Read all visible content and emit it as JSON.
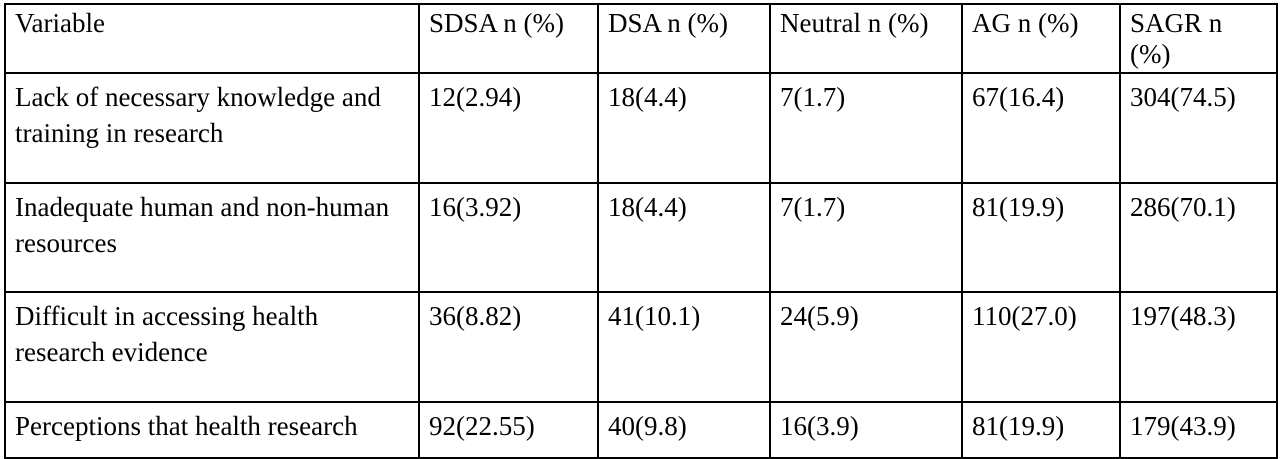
{
  "table": {
    "headers": [
      "Variable",
      "SDSA n (%)",
      "DSA n (%)",
      "Neutral n (%)",
      "AG n (%)",
      "SAGR n (%)"
    ],
    "rows": [
      [
        "Lack of necessary knowledge and training in research",
        "12(2.94)",
        "18(4.4)",
        "7(1.7)",
        "67(16.4)",
        "304(74.5)"
      ],
      [
        "Inadequate human and non-human resources",
        "16(3.92)",
        "18(4.4)",
        "7(1.7)",
        "81(19.9)",
        "286(70.1)"
      ],
      [
        "Difficult in accessing health research evidence",
        "36(8.82)",
        "41(10.1)",
        "24(5.9)",
        "110(27.0)",
        "197(48.3)"
      ],
      [
        "Perceptions that health research",
        "92(22.55)",
        "40(9.8)",
        "16(3.9)",
        "81(19.9)",
        "179(43.9)"
      ]
    ]
  }
}
